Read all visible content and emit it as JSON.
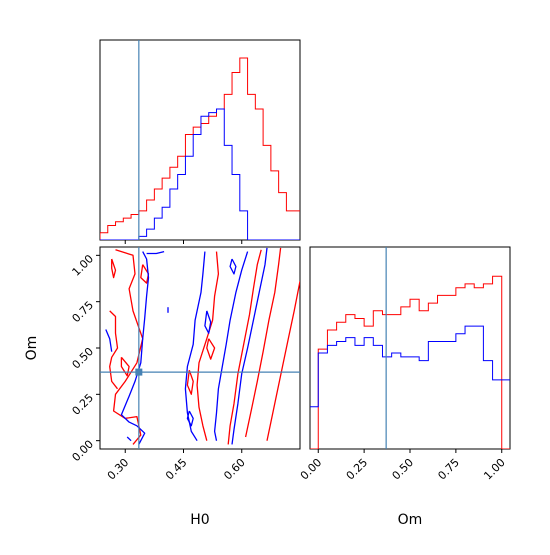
{
  "chart_data": {
    "type": "corner",
    "parameters": [
      "H0",
      "Om"
    ],
    "truth": {
      "H0": 0.335,
      "Om": 0.37
    },
    "truth_color": "#4682b4",
    "colors": {
      "red": "#ff0000",
      "blue": "#0000ff",
      "axis": "#000000"
    },
    "hist_H0": {
      "xlim": [
        0.235,
        0.75
      ],
      "xticks": [
        0.3,
        0.45,
        0.6
      ],
      "tick_labels": [
        "0.30",
        "0.45",
        "0.60"
      ],
      "xlabel": "H0",
      "bins": [
        0.235,
        0.255,
        0.275,
        0.295,
        0.315,
        0.335,
        0.355,
        0.375,
        0.395,
        0.415,
        0.435,
        0.455,
        0.475,
        0.495,
        0.515,
        0.535,
        0.555,
        0.575,
        0.595,
        0.615,
        0.635,
        0.655,
        0.675,
        0.695,
        0.715,
        0.735,
        0.755
      ],
      "series": [
        {
          "color": "red",
          "values": [
            0.04,
            0.08,
            0.1,
            0.12,
            0.14,
            0.16,
            0.22,
            0.28,
            0.34,
            0.4,
            0.46,
            0.58,
            0.62,
            0.64,
            0.68,
            0.72,
            0.8,
            0.92,
            1.0,
            0.8,
            0.72,
            0.52,
            0.38,
            0.26,
            0.16,
            0.16
          ]
        },
        {
          "color": "blue",
          "values": [
            0.0,
            0.0,
            0.0,
            0.0,
            0.0,
            0.02,
            0.06,
            0.12,
            0.18,
            0.28,
            0.36,
            0.46,
            0.58,
            0.68,
            0.7,
            0.72,
            0.52,
            0.36,
            0.16,
            0.0,
            0.0,
            0.0,
            0.0,
            0.0,
            0.0,
            0.0
          ]
        }
      ]
    },
    "hist_Om": {
      "xlim": [
        -0.045,
        1.045
      ],
      "xticks": [
        0.0,
        0.25,
        0.5,
        0.75,
        1.0
      ],
      "tick_labels": [
        "0.00",
        "0.25",
        "0.50",
        "0.75",
        "1.00"
      ],
      "xlabel": "Om",
      "bins": [
        -0.05,
        0.0,
        0.05,
        0.1,
        0.15,
        0.2,
        0.25,
        0.3,
        0.35,
        0.4,
        0.45,
        0.5,
        0.55,
        0.6,
        0.65,
        0.7,
        0.75,
        0.8,
        0.85,
        0.9,
        0.95,
        1.0,
        1.05
      ],
      "series": [
        {
          "color": "red",
          "values": [
            0.0,
            0.52,
            0.62,
            0.66,
            0.7,
            0.68,
            0.64,
            0.72,
            0.7,
            0.7,
            0.74,
            0.78,
            0.72,
            0.76,
            0.8,
            0.8,
            0.84,
            0.86,
            0.84,
            0.86,
            0.9,
            0.0
          ]
        },
        {
          "color": "blue",
          "values": [
            0.22,
            0.5,
            0.54,
            0.56,
            0.58,
            0.54,
            0.58,
            0.54,
            0.48,
            0.5,
            0.48,
            0.48,
            0.46,
            0.56,
            0.56,
            0.56,
            0.6,
            0.64,
            0.64,
            0.46,
            0.36,
            0.36
          ]
        }
      ]
    },
    "scatter2d": {
      "xlim": [
        0.235,
        0.75
      ],
      "ylim": [
        -0.045,
        1.045
      ],
      "xticks": [
        0.3,
        0.45,
        0.6
      ],
      "x_tick_labels": [
        "0.30",
        "0.45",
        "0.60"
      ],
      "yticks": [
        0.0,
        0.25,
        0.5,
        0.75,
        1.0
      ],
      "y_tick_labels": [
        "0.00",
        "0.25",
        "0.50",
        "0.75",
        "1.00"
      ],
      "xlabel": "H0",
      "ylabel": "Om",
      "contours": [
        {
          "color": "red",
          "points": [
            [
              0.275,
              1.03
            ],
            [
              0.32,
              1.0
            ],
            [
              0.325,
              0.9
            ],
            [
              0.31,
              0.82
            ],
            [
              0.32,
              0.7
            ],
            [
              0.345,
              0.55
            ],
            [
              0.33,
              0.42
            ],
            [
              0.3,
              0.32
            ],
            [
              0.275,
              0.25
            ],
            [
              0.27,
              0.16
            ],
            [
              0.3,
              0.12
            ],
            [
              0.33,
              0.13
            ],
            [
              0.34,
              0.03
            ],
            [
              0.32,
              -0.02
            ]
          ]
        },
        {
          "color": "red",
          "points": [
            [
              0.26,
              0.7
            ],
            [
              0.275,
              0.67
            ],
            [
              0.275,
              0.58
            ],
            [
              0.28,
              0.5
            ],
            [
              0.265,
              0.45
            ],
            [
              0.26,
              0.4
            ],
            [
              0.265,
              0.32
            ],
            [
              0.28,
              0.28
            ]
          ]
        },
        {
          "color": "red",
          "points": [
            [
              0.265,
              0.98
            ],
            [
              0.275,
              0.92
            ],
            [
              0.27,
              0.88
            ],
            [
              0.265,
              0.93
            ],
            [
              0.265,
              0.98
            ]
          ]
        },
        {
          "color": "red",
          "points": [
            [
              0.345,
              0.95
            ],
            [
              0.36,
              0.9
            ],
            [
              0.355,
              0.85
            ],
            [
              0.34,
              0.88
            ],
            [
              0.345,
              0.95
            ]
          ]
        },
        {
          "color": "red",
          "points": [
            [
              0.29,
              0.45
            ],
            [
              0.31,
              0.4
            ],
            [
              0.305,
              0.35
            ],
            [
              0.29,
              0.4
            ],
            [
              0.29,
              0.45
            ]
          ]
        },
        {
          "color": "red",
          "points": [
            [
              0.535,
              1.02
            ],
            [
              0.54,
              0.9
            ],
            [
              0.53,
              0.78
            ],
            [
              0.525,
              0.65
            ],
            [
              0.51,
              0.55
            ],
            [
              0.49,
              0.42
            ],
            [
              0.485,
              0.3
            ],
            [
              0.49,
              0.18
            ],
            [
              0.5,
              0.08
            ],
            [
              0.51,
              0.0
            ]
          ]
        },
        {
          "color": "red",
          "points": [
            [
              0.65,
              1.03
            ],
            [
              0.64,
              0.95
            ],
            [
              0.63,
              0.82
            ],
            [
              0.62,
              0.68
            ],
            [
              0.605,
              0.52
            ],
            [
              0.59,
              0.36
            ],
            [
              0.58,
              0.2
            ],
            [
              0.57,
              0.08
            ],
            [
              0.565,
              -0.02
            ]
          ]
        },
        {
          "color": "red",
          "points": [
            [
              0.7,
              1.04
            ],
            [
              0.695,
              0.95
            ],
            [
              0.685,
              0.8
            ],
            [
              0.67,
              0.65
            ],
            [
              0.655,
              0.48
            ],
            [
              0.64,
              0.32
            ],
            [
              0.625,
              0.17
            ],
            [
              0.61,
              0.02
            ]
          ]
        },
        {
          "color": "red",
          "points": [
            [
              0.75,
              0.86
            ],
            [
              0.735,
              0.7
            ],
            [
              0.72,
              0.55
            ],
            [
              0.705,
              0.4
            ],
            [
              0.69,
              0.25
            ],
            [
              0.675,
              0.1
            ],
            [
              0.665,
              0.0
            ]
          ]
        },
        {
          "color": "red",
          "points": [
            [
              0.465,
              0.38
            ],
            [
              0.475,
              0.32
            ],
            [
              0.47,
              0.25
            ],
            [
              0.46,
              0.3
            ],
            [
              0.465,
              0.38
            ]
          ]
        },
        {
          "color": "red",
          "points": [
            [
              0.515,
              0.55
            ],
            [
              0.53,
              0.5
            ],
            [
              0.52,
              0.44
            ],
            [
              0.51,
              0.5
            ],
            [
              0.515,
              0.55
            ]
          ]
        },
        {
          "color": "blue",
          "points": [
            [
              0.345,
              1.02
            ],
            [
              0.355,
              0.98
            ],
            [
              0.36,
              0.88
            ],
            [
              0.355,
              0.78
            ],
            [
              0.35,
              0.66
            ],
            [
              0.345,
              0.55
            ],
            [
              0.34,
              0.42
            ],
            [
              0.325,
              0.32
            ],
            [
              0.31,
              0.24
            ],
            [
              0.29,
              0.14
            ],
            [
              0.31,
              0.1
            ],
            [
              0.33,
              0.08
            ],
            [
              0.35,
              0.04
            ],
            [
              0.335,
              -0.02
            ]
          ]
        },
        {
          "color": "blue",
          "points": [
            [
              0.355,
              1.01
            ],
            [
              0.38,
              1.01
            ],
            [
              0.4,
              1.02
            ]
          ]
        },
        {
          "color": "blue",
          "points": [
            [
              0.25,
              0.6
            ],
            [
              0.26,
              0.55
            ],
            [
              0.265,
              0.48
            ]
          ]
        },
        {
          "color": "blue",
          "points": [
            [
              0.505,
              1.02
            ],
            [
              0.5,
              0.9
            ],
            [
              0.495,
              0.8
            ],
            [
              0.48,
              0.65
            ],
            [
              0.475,
              0.52
            ],
            [
              0.46,
              0.4
            ],
            [
              0.455,
              0.28
            ],
            [
              0.46,
              0.15
            ],
            [
              0.47,
              0.05
            ],
            [
              0.485,
              0.0
            ]
          ]
        },
        {
          "color": "blue",
          "points": [
            [
              0.615,
              1.02
            ],
            [
              0.6,
              0.92
            ],
            [
              0.585,
              0.8
            ],
            [
              0.57,
              0.65
            ],
            [
              0.56,
              0.52
            ],
            [
              0.55,
              0.4
            ],
            [
              0.54,
              0.28
            ],
            [
              0.535,
              0.15
            ],
            [
              0.53,
              0.05
            ],
            [
              0.535,
              0.0
            ]
          ]
        },
        {
          "color": "blue",
          "points": [
            [
              0.665,
              1.04
            ],
            [
              0.66,
              0.95
            ],
            [
              0.645,
              0.8
            ],
            [
              0.63,
              0.65
            ],
            [
              0.615,
              0.5
            ],
            [
              0.6,
              0.36
            ],
            [
              0.59,
              0.2
            ],
            [
              0.58,
              0.06
            ],
            [
              0.575,
              -0.02
            ]
          ]
        },
        {
          "color": "blue",
          "points": [
            [
              0.575,
              0.98
            ],
            [
              0.585,
              0.94
            ],
            [
              0.58,
              0.9
            ],
            [
              0.57,
              0.94
            ],
            [
              0.575,
              0.98
            ]
          ]
        },
        {
          "color": "blue",
          "points": [
            [
              0.51,
              0.7
            ],
            [
              0.52,
              0.64
            ],
            [
              0.515,
              0.58
            ],
            [
              0.505,
              0.62
            ],
            [
              0.51,
              0.7
            ]
          ]
        },
        {
          "color": "blue",
          "points": [
            [
              0.465,
              0.16
            ],
            [
              0.475,
              0.12
            ],
            [
              0.47,
              0.08
            ],
            [
              0.46,
              0.12
            ],
            [
              0.465,
              0.16
            ]
          ]
        },
        {
          "color": "blue",
          "points": [
            [
              0.41,
              0.72
            ],
            [
              0.41,
              0.69
            ]
          ]
        },
        {
          "color": "blue",
          "points": [
            [
              0.305,
              0.02
            ],
            [
              0.315,
              0.0
            ]
          ]
        }
      ]
    }
  }
}
